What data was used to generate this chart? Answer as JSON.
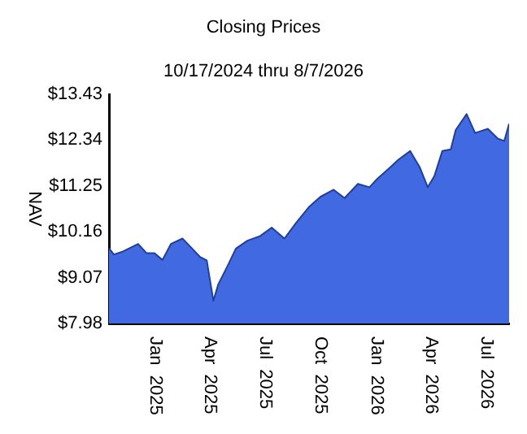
{
  "chart_data": {
    "type": "area",
    "title": "Closing Prices",
    "subtitle": "10/17/2024 thru 8/7/2026",
    "ylabel": "NAV",
    "x": [
      "2024-10-17",
      "2024-10-25",
      "2024-11-07",
      "2024-12-04",
      "2024-12-18",
      "2024-12-31",
      "2025-01-13",
      "2025-01-27",
      "2025-02-15",
      "2025-03-03",
      "2025-03-16",
      "2025-03-27",
      "2025-04-07",
      "2025-04-15",
      "2025-05-01",
      "2025-05-14",
      "2025-06-02",
      "2025-06-23",
      "2025-07-12",
      "2025-08-02",
      "2025-08-21",
      "2025-09-12",
      "2025-09-30",
      "2025-10-22",
      "2025-11-09",
      "2025-12-01",
      "2025-12-20",
      "2026-01-02",
      "2026-01-23",
      "2026-02-06",
      "2026-02-25",
      "2026-03-13",
      "2026-03-26",
      "2026-04-06",
      "2026-04-19",
      "2026-05-03",
      "2026-05-11",
      "2026-05-29",
      "2026-06-12",
      "2026-07-03",
      "2026-07-19",
      "2026-07-30",
      "2026-08-07"
    ],
    "series": [
      {
        "color": "#4169e1",
        "values": [
          9.77,
          9.62,
          9.68,
          9.87,
          9.65,
          9.65,
          9.49,
          9.87,
          10.0,
          9.76,
          9.56,
          9.48,
          8.52,
          8.91,
          9.37,
          9.76,
          9.95,
          10.06,
          10.26,
          10.0,
          10.37,
          10.76,
          10.99,
          11.16,
          10.96,
          11.3,
          11.22,
          11.42,
          11.69,
          11.88,
          12.08,
          11.69,
          11.22,
          11.49,
          12.08,
          12.12,
          12.58,
          12.96,
          12.51,
          12.61,
          12.38,
          12.32,
          12.73
        ]
      }
    ],
    "xlim": [
      "2024-10-17",
      "2026-08-07"
    ],
    "xticks": [
      {
        "value": "2025-01-01",
        "label": "Jan 2025"
      },
      {
        "value": "2025-04-01",
        "label": "Apr 2025"
      },
      {
        "value": "2025-07-01",
        "label": "Jul 2025"
      },
      {
        "value": "2025-10-01",
        "label": "Oct 2025"
      },
      {
        "value": "2026-01-01",
        "label": "Jan 2026"
      },
      {
        "value": "2026-04-01",
        "label": "Apr 2026"
      },
      {
        "value": "2026-07-01",
        "label": "Jul 2026"
      }
    ],
    "ylim": [
      7.98,
      13.43
    ],
    "yticks": [
      {
        "value": 7.98,
        "label": "$7.98"
      },
      {
        "value": 9.07,
        "label": "$9.07"
      },
      {
        "value": 10.16,
        "label": "$10.16"
      },
      {
        "value": 11.25,
        "label": "$11.25"
      },
      {
        "value": 12.34,
        "label": "$12.34"
      },
      {
        "value": 13.43,
        "label": "$13.43"
      }
    ],
    "grid": false,
    "legend": false
  }
}
